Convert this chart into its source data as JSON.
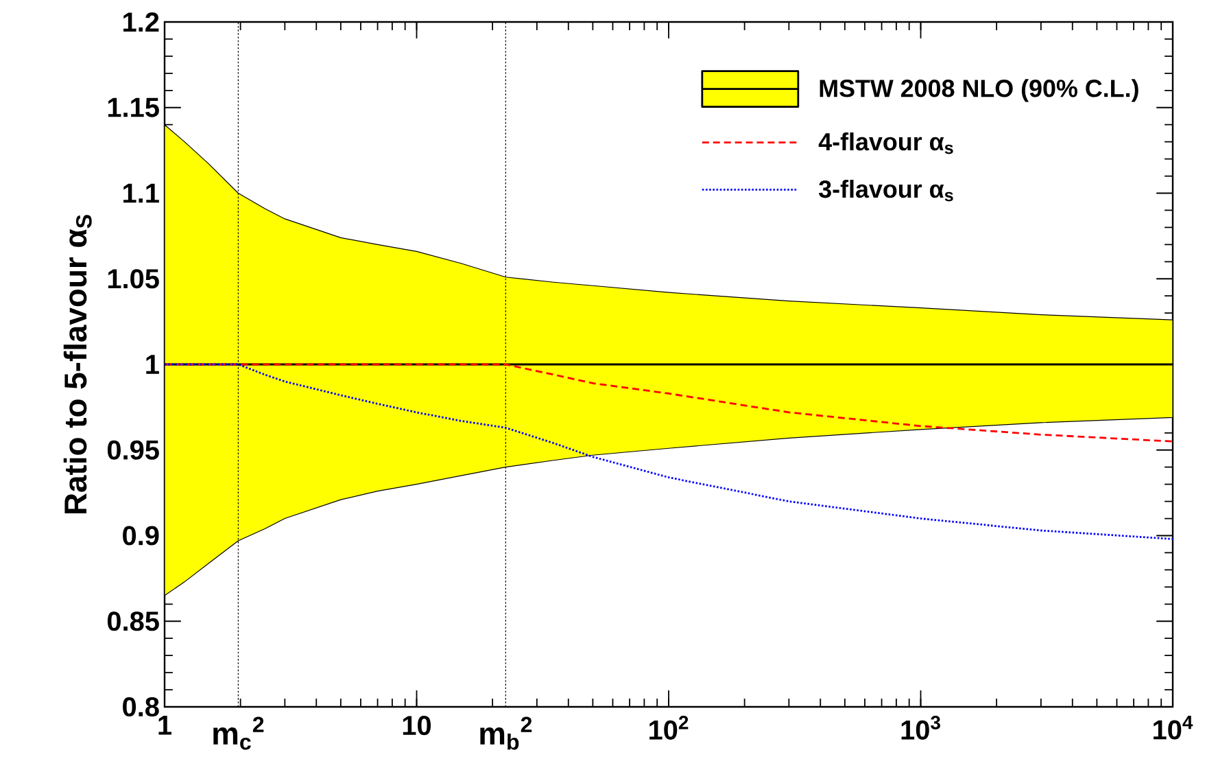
{
  "chart_data": {
    "type": "line",
    "ylabel": "Ratio to 5-flavour α$_{S}$",
    "x": [
      1,
      1.2,
      1.5,
      1.96,
      2.5,
      3,
      5,
      7,
      10,
      15,
      22.56,
      35,
      50,
      100,
      300,
      1000,
      3000,
      10000
    ],
    "series": [
      {
        "name": "MSTW 2008 NLO (90% C.L.)",
        "color": "#000000",
        "line_style": "solid",
        "values": [
          1,
          1,
          1,
          1,
          1,
          1,
          1,
          1,
          1,
          1,
          1,
          1,
          1,
          1,
          1,
          1,
          1,
          1
        ],
        "lower": [
          0.865,
          0.873,
          0.884,
          0.897,
          0.904,
          0.91,
          0.921,
          0.926,
          0.93,
          0.935,
          0.94,
          0.944,
          0.947,
          0.951,
          0.957,
          0.962,
          0.966,
          0.969
        ],
        "upper": [
          1.14,
          1.13,
          1.117,
          1.1,
          1.091,
          1.085,
          1.074,
          1.07,
          1.066,
          1.059,
          1.051,
          1.048,
          1.046,
          1.042,
          1.037,
          1.033,
          1.029,
          1.026
        ]
      },
      {
        "name": "4-flavour α$_{s}$",
        "color": "#ff0000",
        "line_style": "dashed",
        "values": [
          1,
          1,
          1,
          1,
          1,
          1,
          1,
          1,
          1,
          1,
          1,
          0.994,
          0.989,
          0.983,
          0.972,
          0.964,
          0.959,
          0.955
        ]
      },
      {
        "name": "3-flavour α$_{s}$",
        "color": "#0000ff",
        "line_style": "dotted",
        "values": [
          1,
          1,
          1,
          1,
          0.994,
          0.99,
          0.982,
          0.977,
          0.972,
          0.967,
          0.963,
          0.954,
          0.946,
          0.934,
          0.92,
          0.91,
          0.903,
          0.898
        ]
      }
    ],
    "log": "x",
    "xlim": [
      1,
      10000
    ],
    "xticks": [
      1,
      10,
      {
        "value": 100,
        "label": "10$^{2}$"
      },
      {
        "value": 1000,
        "label": "10$^{3}$"
      },
      {
        "value": 10000,
        "label": "10$^{4}$"
      }
    ],
    "ylim": [
      0.8,
      1.2
    ],
    "yticks": [
      0.8,
      0.85,
      0.9,
      0.95,
      1,
      1.05,
      1.1,
      1.15,
      1.2
    ],
    "ref_lines": [
      {
        "axis": "x",
        "value": 1.96,
        "label": "m$_{c}$$^{2}$",
        "color": "#000000",
        "line_style": "dotted"
      },
      {
        "axis": "x",
        "value": 22.56,
        "label": "m$_{b}$$^{2}$",
        "color": "#000000",
        "line_style": "dotted"
      }
    ],
    "color": "#ffff00",
    "legend": "top right",
    "grid": false
  }
}
